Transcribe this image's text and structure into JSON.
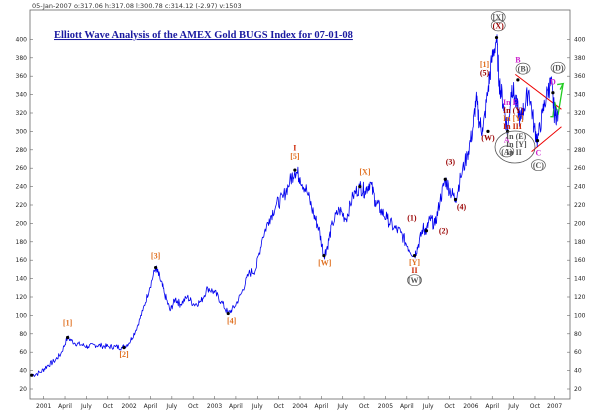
{
  "header": {
    "info": "05-Jan-2007  o:317.06 h:317.08 l:300.78 c:314.12 (-2.97) v:1503"
  },
  "chart_data": {
    "type": "line",
    "title": "Elliott Wave Analysis of the AMEX Gold BUGS Index for 07-01-08",
    "ylim": [
      20,
      420
    ],
    "y_ticks": [
      20,
      40,
      60,
      80,
      100,
      120,
      140,
      160,
      180,
      200,
      220,
      240,
      260,
      280,
      300,
      320,
      340,
      360,
      380,
      400
    ],
    "x_ticks": [
      {
        "label": "2001",
        "t": 2001.04
      },
      {
        "label": "April",
        "t": 2001.29
      },
      {
        "label": "July",
        "t": 2001.54
      },
      {
        "label": "Oct",
        "t": 2001.79
      },
      {
        "label": "2002",
        "t": 2002.04
      },
      {
        "label": "April",
        "t": 2002.29
      },
      {
        "label": "July",
        "t": 2002.54
      },
      {
        "label": "Oct",
        "t": 2002.79
      },
      {
        "label": "2003",
        "t": 2003.04
      },
      {
        "label": "April",
        "t": 2003.29
      },
      {
        "label": "July",
        "t": 2003.54
      },
      {
        "label": "Oct",
        "t": 2003.79
      },
      {
        "label": "2004",
        "t": 2004.04
      },
      {
        "label": "April",
        "t": 2004.29
      },
      {
        "label": "July",
        "t": 2004.54
      },
      {
        "label": "Oct",
        "t": 2004.79
      },
      {
        "label": "2005",
        "t": 2005.04
      },
      {
        "label": "April",
        "t": 2005.29
      },
      {
        "label": "July",
        "t": 2005.54
      },
      {
        "label": "Oct",
        "t": 2005.79
      },
      {
        "label": "2006",
        "t": 2006.04
      },
      {
        "label": "April",
        "t": 2006.29
      },
      {
        "label": "July",
        "t": 2006.54
      },
      {
        "label": "Oct",
        "t": 2006.79
      },
      {
        "label": "2007",
        "t": 2007.02
      }
    ],
    "series": [
      {
        "color": "#0000ee",
        "points": [
          [
            2000.9,
            35
          ],
          [
            2001.0,
            38
          ],
          [
            2001.08,
            45
          ],
          [
            2001.16,
            50
          ],
          [
            2001.24,
            58
          ],
          [
            2001.32,
            76
          ],
          [
            2001.4,
            70
          ],
          [
            2001.48,
            68
          ],
          [
            2001.56,
            66
          ],
          [
            2001.64,
            68
          ],
          [
            2001.72,
            67
          ],
          [
            2001.8,
            66
          ],
          [
            2001.88,
            66
          ],
          [
            2001.96,
            65
          ],
          [
            2002.04,
            70
          ],
          [
            2002.12,
            84
          ],
          [
            2002.2,
            105
          ],
          [
            2002.28,
            130
          ],
          [
            2002.35,
            152
          ],
          [
            2002.4,
            140
          ],
          [
            2002.45,
            125
          ],
          [
            2002.52,
            105
          ],
          [
            2002.58,
            118
          ],
          [
            2002.64,
            112
          ],
          [
            2002.72,
            120
          ],
          [
            2002.8,
            112
          ],
          [
            2002.88,
            115
          ],
          [
            2002.96,
            130
          ],
          [
            2003.04,
            125
          ],
          [
            2003.12,
            115
          ],
          [
            2003.2,
            102
          ],
          [
            2003.28,
            110
          ],
          [
            2003.36,
            125
          ],
          [
            2003.44,
            145
          ],
          [
            2003.52,
            150
          ],
          [
            2003.6,
            185
          ],
          [
            2003.68,
            205
          ],
          [
            2003.76,
            220
          ],
          [
            2003.84,
            228
          ],
          [
            2003.92,
            245
          ],
          [
            2003.98,
            258
          ],
          [
            2004.04,
            250
          ],
          [
            2004.12,
            235
          ],
          [
            2004.2,
            210
          ],
          [
            2004.26,
            195
          ],
          [
            2004.32,
            165
          ],
          [
            2004.36,
            175
          ],
          [
            2004.42,
            200
          ],
          [
            2004.5,
            215
          ],
          [
            2004.58,
            205
          ],
          [
            2004.66,
            230
          ],
          [
            2004.74,
            240
          ],
          [
            2004.8,
            235
          ],
          [
            2004.86,
            245
          ],
          [
            2004.92,
            225
          ],
          [
            2004.98,
            215
          ],
          [
            2005.06,
            205
          ],
          [
            2005.14,
            195
          ],
          [
            2005.22,
            190
          ],
          [
            2005.3,
            175
          ],
          [
            2005.38,
            165
          ],
          [
            2005.42,
            175
          ],
          [
            2005.48,
            195
          ],
          [
            2005.52,
            192
          ],
          [
            2005.56,
            205
          ],
          [
            2005.62,
            198
          ],
          [
            2005.68,
            225
          ],
          [
            2005.74,
            248
          ],
          [
            2005.8,
            235
          ],
          [
            2005.86,
            226
          ],
          [
            2005.92,
            250
          ],
          [
            2006.0,
            275
          ],
          [
            2006.06,
            300
          ],
          [
            2006.1,
            335
          ],
          [
            2006.14,
            310
          ],
          [
            2006.18,
            300
          ],
          [
            2006.24,
            345
          ],
          [
            2006.28,
            375
          ],
          [
            2006.34,
            402
          ],
          [
            2006.37,
            355
          ],
          [
            2006.42,
            330
          ],
          [
            2006.47,
            300
          ],
          [
            2006.52,
            350
          ],
          [
            2006.57,
            330
          ],
          [
            2006.62,
            312
          ],
          [
            2006.66,
            325
          ],
          [
            2006.72,
            345
          ],
          [
            2006.78,
            305
          ],
          [
            2006.82,
            290
          ],
          [
            2006.88,
            320
          ],
          [
            2006.94,
            345
          ],
          [
            2006.98,
            352
          ],
          [
            2007.02,
            318
          ],
          [
            2007.06,
            318
          ]
        ]
      }
    ],
    "trendlines": [
      {
        "color": "#ee0000",
        "from": [
          2006.56,
          362
        ],
        "to": [
          2007.1,
          324
        ]
      },
      {
        "color": "#ee0000",
        "from": [
          2006.75,
          278
        ],
        "to": [
          2007.1,
          305
        ]
      },
      {
        "color": "#22cc22",
        "from": [
          2006.97,
          316
        ],
        "to": [
          2007.04,
          332
        ],
        "via": [
          [
            2007.0,
            316
          ],
          [
            2007.02,
            332
          ],
          [
            2007.06,
            318
          ],
          [
            2007.12,
            352
          ]
        ]
      }
    ],
    "annotations": [
      {
        "text": "[1]",
        "t": 2001.32,
        "v": 89,
        "color": "#e07020"
      },
      {
        "text": "[2]",
        "t": 2001.98,
        "v": 55,
        "color": "#e07020"
      },
      {
        "text": "[3]",
        "t": 2002.35,
        "v": 162,
        "color": "#e07020"
      },
      {
        "text": "[4]",
        "t": 2003.24,
        "v": 91,
        "color": "#e07020"
      },
      {
        "text": "I",
        "t": 2003.98,
        "v": 279,
        "color": "#cc2200"
      },
      {
        "text": "[5]",
        "t": 2003.98,
        "v": 270,
        "color": "#e07020"
      },
      {
        "text": "[W]",
        "t": 2004.33,
        "v": 154,
        "color": "#e07020"
      },
      {
        "text": "[X]",
        "t": 2004.8,
        "v": 253,
        "color": "#e07020"
      },
      {
        "text": "(1)",
        "t": 2005.35,
        "v": 203,
        "color": "#990000"
      },
      {
        "text": "[Y]",
        "t": 2005.38,
        "v": 155,
        "color": "#e07020"
      },
      {
        "text": "II",
        "t": 2005.38,
        "v": 146,
        "color": "#cc2200"
      },
      {
        "text": "[W]",
        "t": 2005.38,
        "v": 135,
        "color": "#555555",
        "circle": true
      },
      {
        "text": "(2)",
        "t": 2005.72,
        "v": 189,
        "color": "#990000"
      },
      {
        "text": "(3)",
        "t": 2005.8,
        "v": 264,
        "color": "#990000"
      },
      {
        "text": "(4)",
        "t": 2005.93,
        "v": 215,
        "color": "#990000"
      },
      {
        "text": "[1]",
        "t": 2006.2,
        "v": 370,
        "color": "#e07020"
      },
      {
        "text": "(5)",
        "t": 2006.2,
        "v": 361,
        "color": "#990000"
      },
      {
        "text": "(W)",
        "t": 2006.24,
        "v": 290,
        "color": "#990000"
      },
      {
        "text": "[X]",
        "t": 2006.36,
        "v": 421,
        "color": "#555555",
        "circle": true
      },
      {
        "text": "(X)",
        "t": 2006.36,
        "v": 412,
        "color": "#990000",
        "circle": true
      },
      {
        "text": "B",
        "t": 2006.59,
        "v": 375,
        "color": "#cc22cc"
      },
      {
        "text": "A",
        "t": 2006.46,
        "v": 288,
        "color": "#cc22cc"
      },
      {
        "text": "(A)",
        "t": 2006.46,
        "v": 275,
        "color": "#555555",
        "circle": true
      },
      {
        "text": "(B)",
        "t": 2006.65,
        "v": 365,
        "color": "#555555",
        "circle": true
      },
      {
        "text": "C",
        "t": 2006.83,
        "v": 274,
        "color": "#cc22cc"
      },
      {
        "text": "(C)",
        "t": 2006.83,
        "v": 260,
        "color": "#555555",
        "circle": true
      },
      {
        "text": "(D)",
        "t": 2007.06,
        "v": 366,
        "color": "#555555",
        "circle": true
      },
      {
        "text": "D",
        "t": 2007.0,
        "v": 351,
        "color": "#cc22cc"
      }
    ],
    "right_notes": [
      {
        "lines": [
          {
            "text": "In E",
            "color": "#cc22cc"
          },
          {
            "text": "In (Y)",
            "color": "#990000"
          },
          {
            "text": "In [Y]",
            "color": "#e07020"
          },
          {
            "text": "In III",
            "color": "#cc2200"
          }
        ]
      },
      {
        "circle": true,
        "lines": [
          {
            "text": "In (E)",
            "color": "#555555"
          },
          {
            "text": "In [Y]",
            "color": "#555555"
          },
          {
            "text": "In II",
            "color": "#555555"
          }
        ]
      }
    ]
  }
}
